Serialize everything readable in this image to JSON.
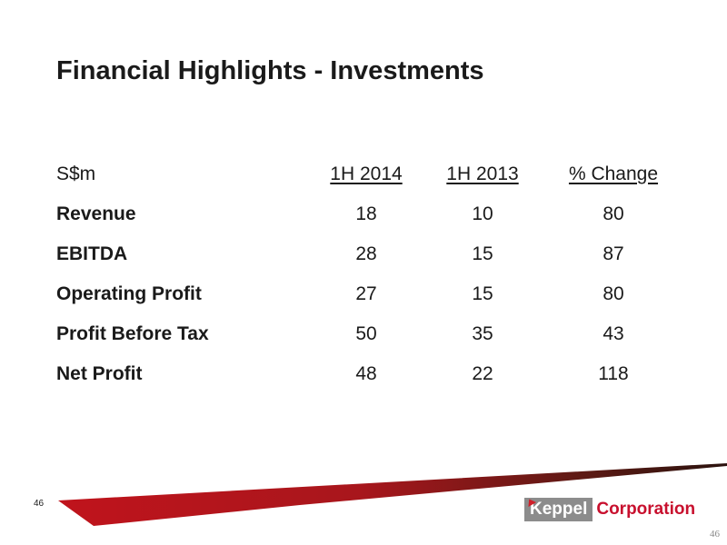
{
  "slide": {
    "title": "Financial Highlights - Investments",
    "page_number_left": "46",
    "page_number_right": "46"
  },
  "table": {
    "header": {
      "label": "S$m",
      "col1": "1H 2014",
      "col2": "1H 2013",
      "col3": "% Change"
    },
    "rows": [
      {
        "label": "Revenue",
        "v2014": "18",
        "v2013": "10",
        "change": "80"
      },
      {
        "label": "EBITDA",
        "v2014": "28",
        "v2013": "15",
        "change": "87"
      },
      {
        "label": "Operating Profit",
        "v2014": "27",
        "v2013": "15",
        "change": "80"
      },
      {
        "label": "Profit Before Tax",
        "v2014": "50",
        "v2013": "35",
        "change": "43"
      },
      {
        "label": "Net Profit",
        "v2014": "48",
        "v2013": "22",
        "change": "118"
      }
    ]
  },
  "logo": {
    "part1": "Keppel",
    "part2": "Corporation"
  },
  "colors": {
    "accent_red": "#c8102e",
    "logo_grey": "#8c8c8c",
    "text": "#1a1a1a"
  }
}
